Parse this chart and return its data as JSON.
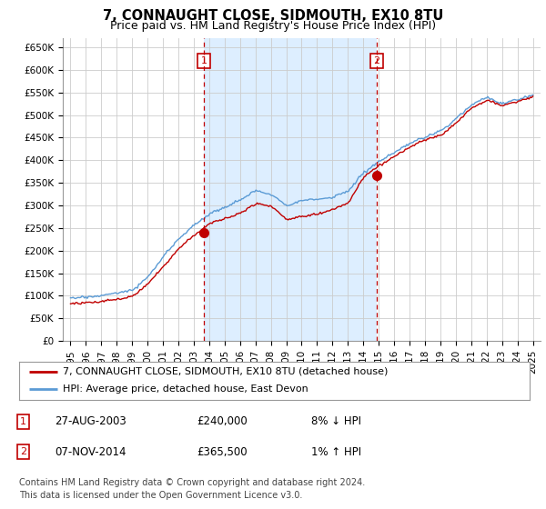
{
  "title": "7, CONNAUGHT CLOSE, SIDMOUTH, EX10 8TU",
  "subtitle": "Price paid vs. HM Land Registry's House Price Index (HPI)",
  "ylabel_ticks": [
    "£0",
    "£50K",
    "£100K",
    "£150K",
    "£200K",
    "£250K",
    "£300K",
    "£350K",
    "£400K",
    "£450K",
    "£500K",
    "£550K",
    "£600K",
    "£650K"
  ],
  "ytick_values": [
    0,
    50000,
    100000,
    150000,
    200000,
    250000,
    300000,
    350000,
    400000,
    450000,
    500000,
    550000,
    600000,
    650000
  ],
  "xlim_start": 1994.5,
  "xlim_end": 2025.5,
  "ylim_min": 0,
  "ylim_max": 670000,
  "sale1_year": 2003.65,
  "sale1_price": 240000,
  "sale1_label": "1",
  "sale2_year": 2014.85,
  "sale2_price": 365500,
  "sale2_label": "2",
  "shade_color": "#ddeeff",
  "legend_line1": "7, CONNAUGHT CLOSE, SIDMOUTH, EX10 8TU (detached house)",
  "legend_line2": "HPI: Average price, detached house, East Devon",
  "table_row1": [
    "1",
    "27-AUG-2003",
    "£240,000",
    "8% ↓ HPI"
  ],
  "table_row2": [
    "2",
    "07-NOV-2014",
    "£365,500",
    "1% ↑ HPI"
  ],
  "footer": "Contains HM Land Registry data © Crown copyright and database right 2024.\nThis data is licensed under the Open Government Licence v3.0.",
  "hpi_color": "#5b9bd5",
  "price_color": "#c00000",
  "vline_color": "#c00000",
  "bg_color": "#ffffff",
  "grid_color": "#cccccc",
  "title_fontsize": 10.5,
  "subtitle_fontsize": 9,
  "tick_fontsize": 7.5,
  "legend_fontsize": 8,
  "table_fontsize": 8.5,
  "footer_fontsize": 7
}
